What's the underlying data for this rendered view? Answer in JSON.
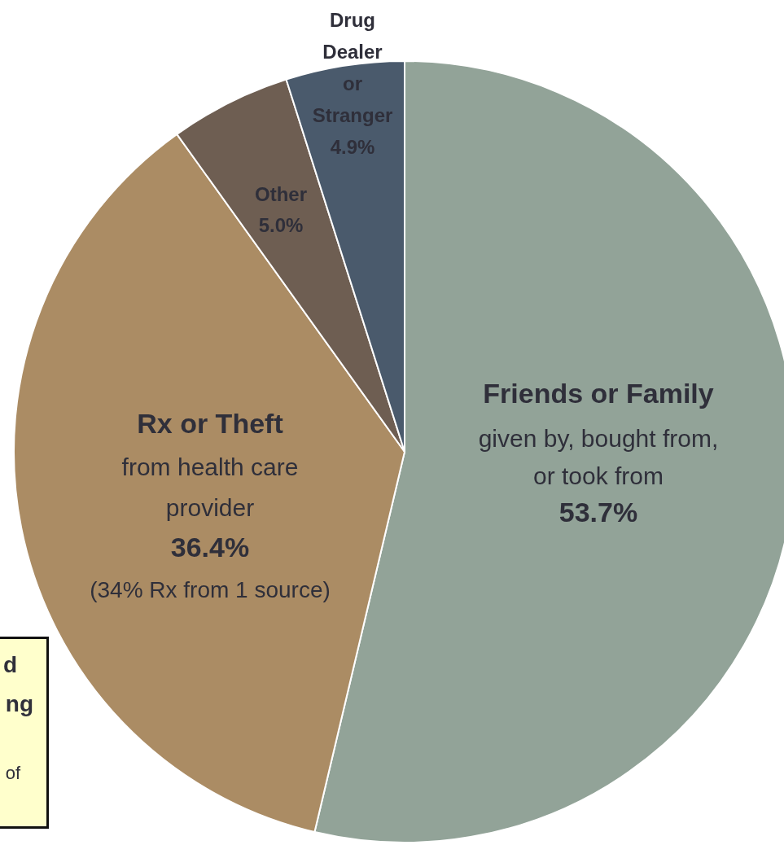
{
  "chart_data": {
    "type": "pie",
    "categories": [
      "Friends or Family",
      "Rx or Theft",
      "Other",
      "Drug Dealer or Stranger"
    ],
    "values": [
      53.7,
      36.4,
      5.0,
      4.9
    ],
    "colors": [
      "#92a398",
      "#ab8c64",
      "#6e5e52",
      "#4a5a6c"
    ],
    "value_labels": [
      "53.7%",
      "36.4%",
      "5.0%",
      "4.9%"
    ],
    "annotations": [
      "given by, bought from, or took from",
      "from health care provider",
      "(34% Rx from 1 source)",
      "d",
      "ng",
      "of"
    ]
  }
}
